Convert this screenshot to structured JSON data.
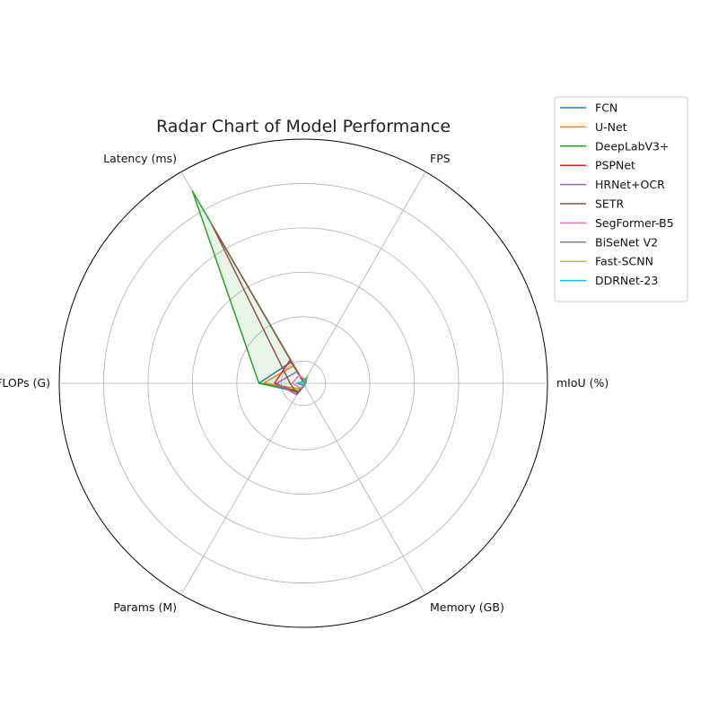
{
  "chart_data": {
    "type": "radar",
    "title": "Radar Chart of Model Performance",
    "axes": [
      "mIoU (%)",
      "FPS",
      "Latency (ms)",
      "FLOPs (G)",
      "Params (M)",
      "Memory (GB)"
    ],
    "grid": true,
    "radial_tick_labels_shown": false,
    "rmax": 1100,
    "rings": [
      100,
      300,
      500,
      700,
      900,
      1100
    ],
    "legend_position": "top-right, outside plot",
    "series": [
      {
        "name": "FCN",
        "color": "#1f77b4",
        "values": [
          12,
          6,
          110,
          200,
          45,
          10
        ],
        "fill": false
      },
      {
        "name": "U-Net",
        "color": "#ff7f0e",
        "values": [
          12,
          8,
          90,
          180,
          30,
          10
        ],
        "fill": false
      },
      {
        "name": "DeepLabV3+",
        "color": "#2ca02c",
        "values": [
          12,
          4,
          1000,
          200,
          40,
          10
        ],
        "fill": true
      },
      {
        "name": "PSPNet",
        "color": "#d62728",
        "values": [
          12,
          6,
          120,
          130,
          50,
          10
        ],
        "fill": false
      },
      {
        "name": "HRNet+OCR",
        "color": "#9467bd",
        "values": [
          12,
          8,
          60,
          120,
          60,
          10
        ],
        "fill": false
      },
      {
        "name": "SETR",
        "color": "#8c564b",
        "values": [
          12,
          3,
          820,
          60,
          55,
          10
        ],
        "fill": false
      },
      {
        "name": "SegFormer-B5",
        "color": "#e377c2",
        "values": [
          12,
          20,
          40,
          50,
          25,
          8
        ],
        "fill": false
      },
      {
        "name": "BiSeNet V2",
        "color": "#7f7f7f",
        "values": [
          10,
          30,
          10,
          20,
          5,
          5
        ],
        "fill": false
      },
      {
        "name": "Fast-SCNN",
        "color": "#bcbd22",
        "values": [
          10,
          40,
          5,
          10,
          2,
          4
        ],
        "fill": false
      },
      {
        "name": "DDRNet-23",
        "color": "#17becf",
        "values": [
          12,
          25,
          8,
          30,
          10,
          6
        ],
        "fill": false
      }
    ]
  }
}
